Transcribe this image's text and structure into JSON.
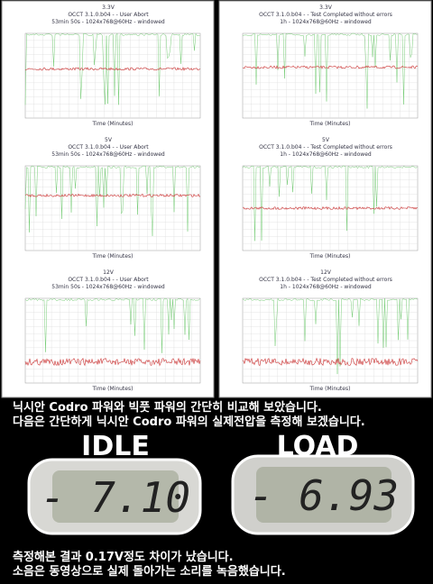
{
  "panels": [
    {
      "title": "3.3V",
      "subtitle": "OCCT 3.1.0.b04 - - User Abort",
      "detail": "53min 50s - 1024x768@60Hz - windowed",
      "x_label": "Time (Minutes)"
    },
    {
      "title": "3.3V",
      "subtitle": "OCCT 3.1.0.b04 - - Test Completed without errors",
      "detail": "1h - 1024x768@60Hz - windowed",
      "x_label": "Time (Minutes)"
    },
    {
      "title": "5V",
      "subtitle": "OCCT 3.1.0.b04 - - User Abort",
      "detail": "53min 50s - 1024x768@60Hz - windowed",
      "x_label": "Time (Minutes)"
    },
    {
      "title": "5V",
      "subtitle": "OCCT 3.1.0.b04 - - Test Completed without errors",
      "detail": "1h - 1024x768@60Hz - windowed",
      "x_label": "Time (Minutes)"
    },
    {
      "title": "12V",
      "subtitle": "OCCT 3.1.0.b04 - - User Abort",
      "detail": "53min 50s - 1024x768@60Hz - windowed",
      "x_label": "Time (Minutes)"
    },
    {
      "title": "12V",
      "subtitle": "OCCT 3.1.0.b04 - - Test Completed without errors",
      "detail": "1h - 1024x768@60Hz - windowed",
      "x_label": "Time (Minutes)"
    }
  ],
  "intro": [
    "닉시안 Codro 파워와 빅풋 파워의 간단히 비교해 보았습니다.",
    "다음은 간단하게 닉시안 Codro 파워의 실제전압을 측정해 보겠습니다."
  ],
  "labels": {
    "idle": "IDLE",
    "load": "LOAD"
  },
  "readings": {
    "idle": "- 7.10",
    "load": "- 6.93"
  },
  "footer": [
    "측정해본 결과 0.17V정도 차이가 났습니다.",
    "소음은 동영상으로 실제 돌아가는 소리를 녹음했습니다."
  ]
}
